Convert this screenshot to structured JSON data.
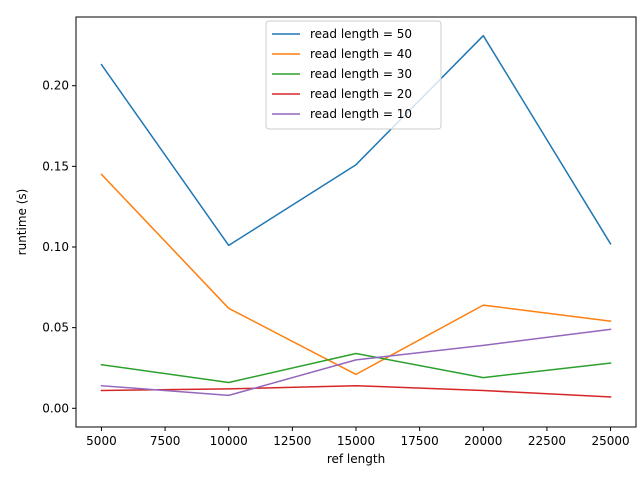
{
  "chart_data": {
    "type": "line",
    "xlabel": "ref length",
    "ylabel": "runtime (s)",
    "xlim": [
      4000,
      26000
    ],
    "ylim": [
      -0.0116,
      0.2426
    ],
    "xticks": [
      5000,
      7500,
      10000,
      12500,
      15000,
      17500,
      20000,
      22500,
      25000
    ],
    "xtick_labels": [
      "5000",
      "7500",
      "10000",
      "12500",
      "15000",
      "17500",
      "20000",
      "22500",
      "25000"
    ],
    "yticks": [
      0.0,
      0.05,
      0.1,
      0.15,
      0.2
    ],
    "ytick_labels": [
      "0.00",
      "0.05",
      "0.10",
      "0.15",
      "0.20"
    ],
    "grid": false,
    "legend_position": "top-center",
    "x": [
      5000,
      10000,
      15000,
      20000,
      25000
    ],
    "series": [
      {
        "name": "read length = 50",
        "color": "#1f77b4",
        "values": [
          0.213,
          0.101,
          0.151,
          0.231,
          0.102
        ]
      },
      {
        "name": "read length = 40",
        "color": "#ff7f0e",
        "values": [
          0.145,
          0.062,
          0.021,
          0.064,
          0.054
        ]
      },
      {
        "name": "read length = 30",
        "color": "#2ca02c",
        "values": [
          0.027,
          0.016,
          0.034,
          0.019,
          0.028
        ]
      },
      {
        "name": "read length = 20",
        "color": "#d62728",
        "values": [
          0.011,
          0.012,
          0.014,
          0.011,
          0.007
        ]
      },
      {
        "name": "read length = 10",
        "color": "#9467bd",
        "values": [
          0.014,
          0.008,
          0.03,
          0.039,
          0.049
        ]
      }
    ]
  }
}
